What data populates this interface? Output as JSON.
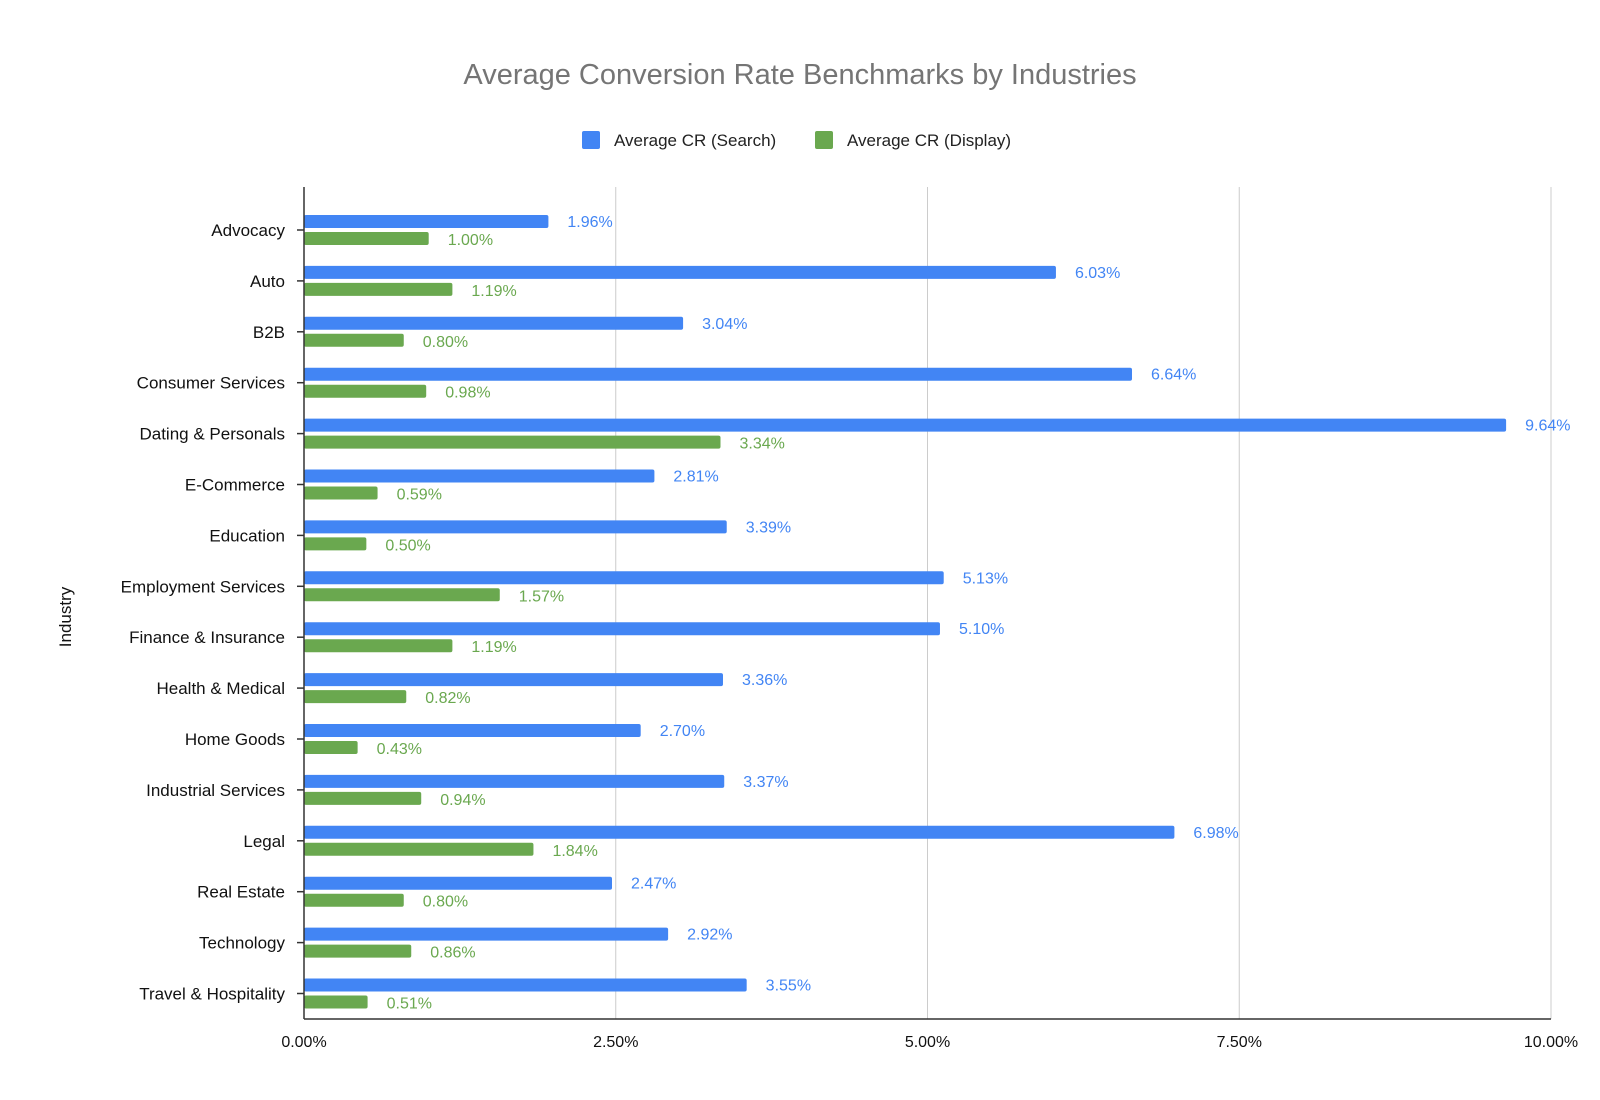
{
  "chart_data": {
    "type": "bar",
    "orientation": "horizontal",
    "title": "Average Conversion Rate Benchmarks by Industries",
    "xlabel": "",
    "ylabel": "Industry",
    "xlim": [
      0,
      10
    ],
    "x_ticks": [
      0,
      2.5,
      5,
      7.5,
      10
    ],
    "x_tick_labels": [
      "0.00%",
      "2.50%",
      "5.00%",
      "7.50%",
      "10.00%"
    ],
    "grid": "vertical",
    "legend_position": "top",
    "categories": [
      "Advocacy",
      "Auto",
      "B2B",
      "Consumer Services",
      "Dating & Personals",
      "E-Commerce",
      "Education",
      "Employment Services",
      "Finance & Insurance",
      "Health & Medical",
      "Home Goods",
      "Industrial Services",
      "Legal",
      "Real Estate",
      "Technology",
      "Travel & Hospitality"
    ],
    "series": [
      {
        "name": "Average CR (Search)",
        "color": "#4285F4",
        "values": [
          1.96,
          6.03,
          3.04,
          6.64,
          9.64,
          2.81,
          3.39,
          5.13,
          5.1,
          3.36,
          2.7,
          3.37,
          6.98,
          2.47,
          2.92,
          3.55
        ],
        "labels": [
          "1.96%",
          "6.03%",
          "3.04%",
          "6.64%",
          "9.64%",
          "2.81%",
          "3.39%",
          "5.13%",
          "5.10%",
          "3.36%",
          "2.70%",
          "3.37%",
          "6.98%",
          "2.47%",
          "2.92%",
          "3.55%"
        ]
      },
      {
        "name": "Average CR (Display)",
        "color": "#6AA84F",
        "values": [
          1.0,
          1.19,
          0.8,
          0.98,
          3.34,
          0.59,
          0.5,
          1.57,
          1.19,
          0.82,
          0.43,
          0.94,
          1.84,
          0.8,
          0.86,
          0.51
        ],
        "labels": [
          "1.00%",
          "1.19%",
          "0.80%",
          "0.98%",
          "3.34%",
          "0.59%",
          "0.50%",
          "1.57%",
          "1.19%",
          "0.82%",
          "0.43%",
          "0.94%",
          "1.84%",
          "0.80%",
          "0.86%",
          "0.51%"
        ]
      }
    ]
  }
}
